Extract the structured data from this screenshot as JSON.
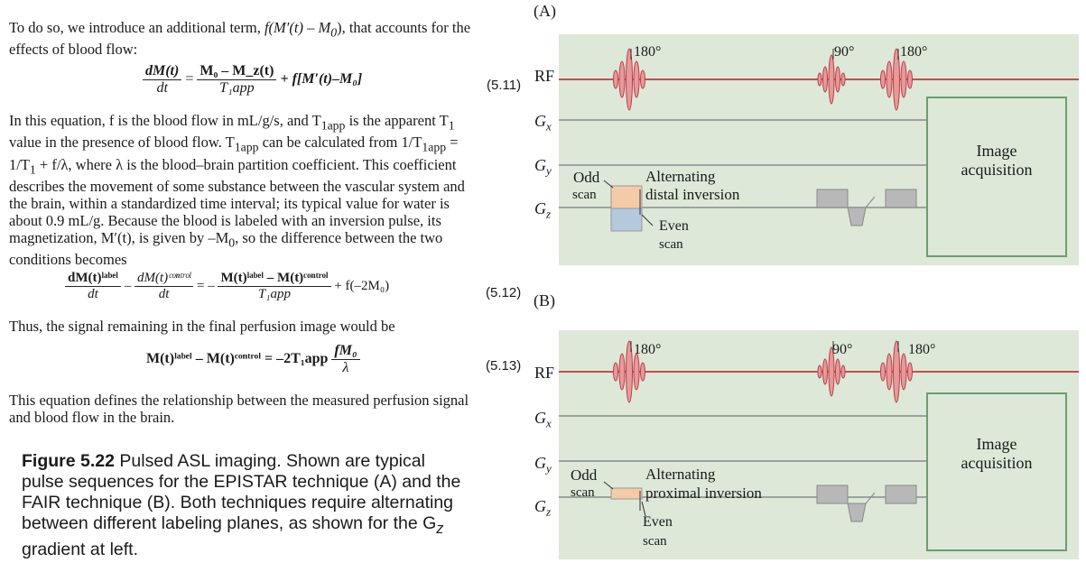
{
  "text": {
    "intro_line1": "To do so, we introduce an additional term, ",
    "intro_term": "f(M′(t) – M",
    "intro_term_sub": "0",
    "intro_line1_end": "), that accounts for the",
    "intro_line2": "effects of blood flow:",
    "para2_lines": [
      "In this equation, f is the blood flow in mL/g/s, and T",
      "value in the presence of blood flow. T",
      "1/T",
      "describes the movement of some substance between the vascular system and",
      "the brain, within a standardized time interval; its typical value for water is",
      "about 0.9 mL/g. Because the blood is labeled with an inversion pulse, its",
      "magnetization, M′(t), is given by –M",
      "conditions becomes"
    ],
    "para2_fragments": {
      "l1_sub": "1app",
      "l1_end": " is the apparent T",
      "l1_sub2": "1",
      "l2_sub": "1app",
      "l2_end": " can be calculated from 1/T",
      "l2_sub2": "1app",
      "l2_eq": " =",
      "l3_sub": "1",
      "l3_end": " + f/λ, where λ is the blood–brain partition coefficient. This coefficient",
      "l7_sub": "0",
      "l7_end": ", so the difference between the two"
    },
    "thus_line": "Thus, the signal remaining in the final perfusion image would be",
    "defines_line1": "This equation defines the relationship between the measured perfusion signal",
    "defines_line2": "and blood flow in the brain."
  },
  "equations": {
    "e511": {
      "lhs_num": "dM(t)",
      "lhs_den": "dt",
      "eq": "=",
      "rhs_num": "M₀ – M_z(t)",
      "rhs_den": "T₁app",
      "rhs_tail": "+ f[M′(t)–M₀]",
      "number": "(5.11)"
    },
    "e512": {
      "t1_num": "dM(t)ˡᵃᵇᵉˡ",
      "t1_den": "dt",
      "minus": "–",
      "t2_num": "dM(t)ᶜᵒⁿᵗʳᵒˡ",
      "t2_den": "dt",
      "eq": "= –",
      "t3_num": "M(t)ˡᵃᵇᵉˡ – M(t)ᶜᵒⁿᵗʳᵒˡ",
      "t3_den": "T₁app",
      "tail": "+ f(–2M₀)",
      "number": "(5.12)"
    },
    "e513": {
      "lhs": "M(t)ˡᵃᵇᵉˡ – M(t)ᶜᵒⁿᵗʳᵒˡ = –2T₁app",
      "frac_num": "fM₀",
      "frac_den": "λ",
      "number": "(5.13)"
    }
  },
  "caption": {
    "figure_label": "Figure 5.22",
    "line1": " Pulsed ASL imaging. Shown are typical",
    "line2": "pulse sequences for the EPISTAR technique (A) and the",
    "line3": "FAIR technique (B). Both techniques require alternating",
    "line4": "between different labeling planes, as shown for the G",
    "line4_sub": "z",
    "line5": "gradient at left."
  },
  "diagram": {
    "colors": {
      "panel_bg": "#dde8d8",
      "rf_line": "#c0504d",
      "pulse_fill": "#e8999b",
      "pulse_stroke": "#b84046",
      "gradient_fill": "#b8b8b8",
      "odd_fill": "#f4cba7",
      "even_fill": "#b5c9dc",
      "box_stroke": "#6e9c6e"
    },
    "channel_labels": [
      "RF",
      "Gx",
      "Gy",
      "Gz"
    ],
    "panel_a": {
      "label": "(A)",
      "angle_180_first": "180°",
      "angle_90": "90°",
      "angle_180_second": "180°",
      "odd_label": "Odd",
      "scan_label": "scan",
      "alt_line1": "Alternating",
      "alt_line2": "distal inversion",
      "even_label": "Even",
      "even_scan": "scan",
      "acq_line1": "Image",
      "acq_line2": "acquisition"
    },
    "panel_b": {
      "label": "(B)",
      "angle_180_first": "180°",
      "angle_90": "90°",
      "angle_180_second": "180°",
      "odd_label": "Odd",
      "scan_label": "scan",
      "alt_line1": "Alternating",
      "alt_line2": "proximal inversion",
      "even_label": "Even",
      "even_scan": "scan",
      "acq_line1": "Image",
      "acq_line2": "acquisition"
    }
  }
}
